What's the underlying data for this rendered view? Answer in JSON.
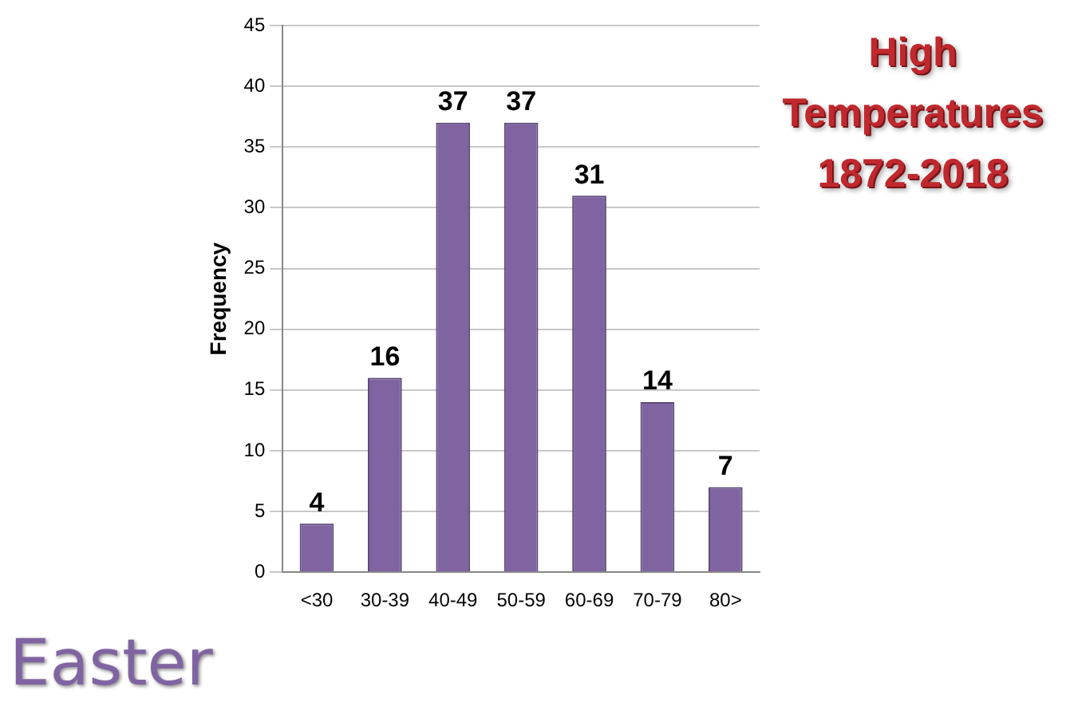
{
  "chart_data": {
    "type": "bar",
    "title": "High Temperatures 1872-2018",
    "ylabel": "Frequency",
    "categories": [
      "<30",
      "30-39",
      "40-49",
      "50-59",
      "60-69",
      "70-79",
      "80>"
    ],
    "values": [
      4,
      16,
      37,
      37,
      31,
      14,
      7
    ],
    "color": "#8064a2",
    "ylim": [
      0,
      45
    ],
    "yticks": [
      0,
      5,
      10,
      15,
      20,
      25,
      30,
      35,
      40,
      45
    ],
    "grid": "y",
    "data_labels": true,
    "annotations": [
      "Easter"
    ]
  }
}
